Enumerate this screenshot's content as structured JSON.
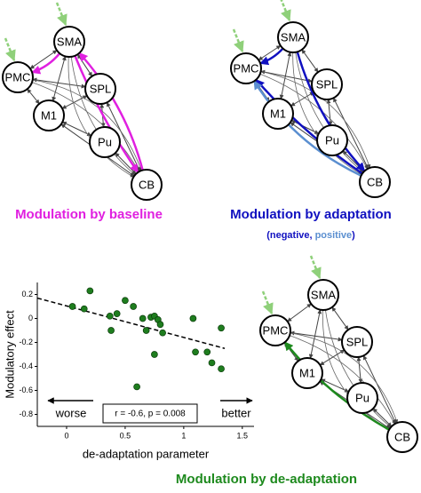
{
  "networks": [
    {
      "title": "Modulation by baseline",
      "nodes": [
        "SMA",
        "PMC",
        "SPL",
        "M1",
        "Pu",
        "CB"
      ]
    },
    {
      "title": "Modulation by adaptation",
      "nodes": [
        "SMA",
        "PMC",
        "SPL",
        "M1",
        "Pu",
        "CB"
      ],
      "subtitle": {
        "open": "(",
        "negative": "negative",
        "sep": ",",
        "positive": "positive",
        "close": ")"
      }
    },
    {
      "title": "Modulation by de-adaptation",
      "nodes": [
        "SMA",
        "PMC",
        "SPL",
        "M1",
        "Pu",
        "CB"
      ]
    }
  ],
  "chart_data": {
    "type": "scatter",
    "xlabel": "de-adaptation parameter",
    "ylabel": "Modulatory effect",
    "x": [
      0.05,
      0.15,
      0.2,
      0.37,
      0.43,
      0.38,
      0.5,
      0.57,
      0.65,
      0.72,
      0.75,
      0.78,
      0.8,
      0.68,
      0.82,
      0.75,
      0.6,
      1.08,
      1.1,
      1.2,
      1.32,
      1.32,
      1.24
    ],
    "y": [
      0.1,
      0.08,
      0.23,
      0.02,
      0.04,
      -0.1,
      0.15,
      0.1,
      0.0,
      0.01,
      0.02,
      -0.01,
      -0.05,
      -0.1,
      -0.12,
      -0.3,
      -0.57,
      0.0,
      -0.28,
      -0.28,
      -0.08,
      -0.42,
      -0.37
    ],
    "color": "#1e7d1e",
    "fit_line": {
      "x": [
        -0.25,
        1.35
      ],
      "y": [
        0.17,
        -0.25
      ]
    },
    "xlim": [
      -0.25,
      1.6
    ],
    "ylim": [
      -0.9,
      0.3
    ],
    "xticks": [
      0,
      0.5,
      1,
      1.5
    ],
    "yticks": [
      0.2,
      0,
      -0.2,
      -0.4,
      -0.6,
      -0.8
    ],
    "annotations": {
      "left": "worse",
      "right": "better",
      "stats": "r = -0.6, p = 0.008"
    }
  }
}
